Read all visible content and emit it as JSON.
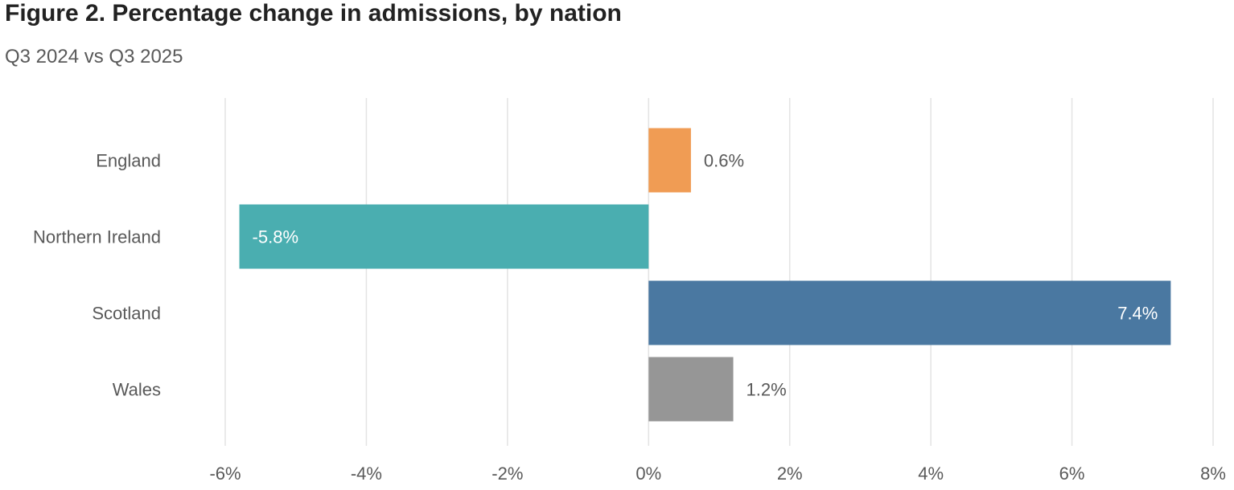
{
  "chart_data": {
    "type": "bar",
    "orientation": "horizontal",
    "title": "Figure 2. Percentage change in admissions, by nation",
    "subtitle": "Q3 2024 vs Q3 2025",
    "xlabel": "",
    "ylabel": "",
    "xlim": [
      -6,
      8
    ],
    "xticks": [
      -6,
      -4,
      -2,
      0,
      2,
      4,
      6,
      8
    ],
    "xtick_labels": [
      "-6%",
      "-4%",
      "-2%",
      "0%",
      "2%",
      "4%",
      "6%",
      "8%"
    ],
    "grid": true,
    "legend": "none",
    "categories": [
      "England",
      "Northern Ireland",
      "Scotland",
      "Wales"
    ],
    "values": [
      0.6,
      -5.8,
      7.4,
      1.2
    ],
    "value_labels": [
      "0.6%",
      "-5.8%",
      "7.4%",
      "1.2%"
    ],
    "colors": [
      "#f09c54",
      "#4aaeb0",
      "#4a78a1",
      "#969696"
    ],
    "label_positions": [
      "outside",
      "inside",
      "inside",
      "outside"
    ],
    "label_colors": [
      "#595959",
      "#ffffff",
      "#ffffff",
      "#595959"
    ]
  }
}
